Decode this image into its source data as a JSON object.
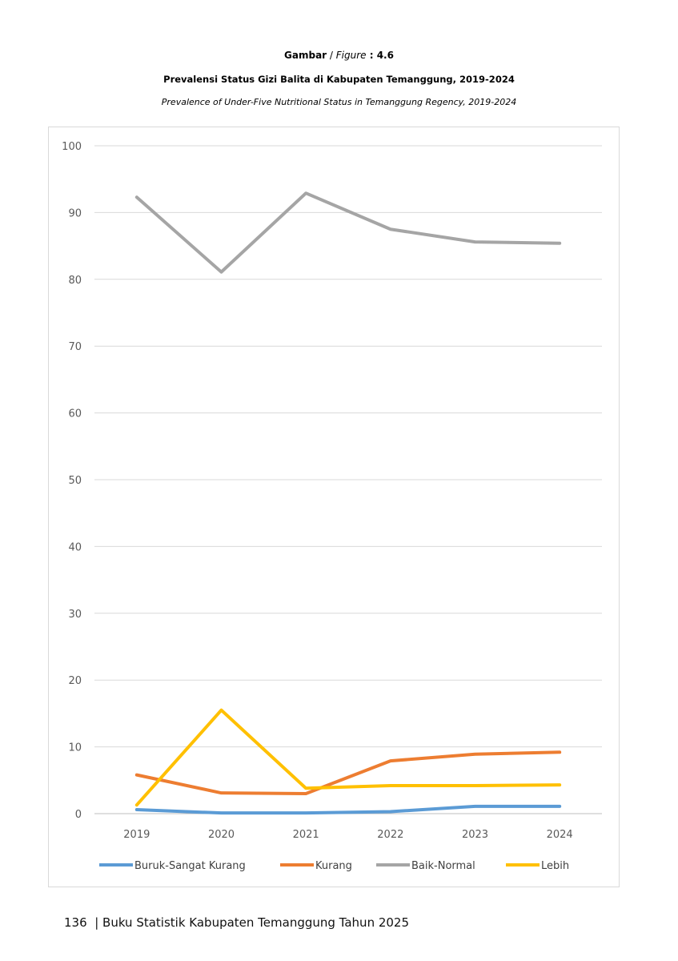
{
  "caption": {
    "label_bold": "Gambar",
    "separator": " / ",
    "label_italic": "Figure",
    "number": " : 4.6",
    "title": "Prevalensi Status Gizi Balita di Kabupaten Temanggung, 2019-2024",
    "subtitle": "Prevalence of Under-Five Nutritional Status in Temanggung Regency, 2019-2024"
  },
  "chart_data": {
    "type": "line",
    "categories": [
      "2019",
      "2020",
      "2021",
      "2022",
      "2023",
      "2024"
    ],
    "ylim": [
      0,
      100
    ],
    "yticks": [
      0,
      10,
      20,
      30,
      40,
      50,
      60,
      70,
      80,
      90,
      100
    ],
    "grid": true,
    "legend_position": "bottom",
    "series": [
      {
        "name": "Buruk-Sangat Kurang",
        "color": "#5B9BD5",
        "values": [
          0.6,
          0.1,
          0.1,
          0.3,
          1.1,
          1.1
        ]
      },
      {
        "name": "Kurang",
        "color": "#ED7D31",
        "values": [
          5.8,
          3.1,
          3.0,
          7.9,
          8.9,
          9.2
        ]
      },
      {
        "name": "Baik-Normal",
        "color": "#A5A5A5",
        "values": [
          92.3,
          81.1,
          92.9,
          87.5,
          85.6,
          85.4
        ]
      },
      {
        "name": "Lebih",
        "color": "#FFC000",
        "values": [
          1.3,
          15.5,
          3.8,
          4.2,
          4.2,
          4.3
        ]
      }
    ]
  },
  "footer": {
    "page_number": "136",
    "separator": "|",
    "book_title": "Buku Statistik Kabupaten Temanggung Tahun 2025"
  }
}
